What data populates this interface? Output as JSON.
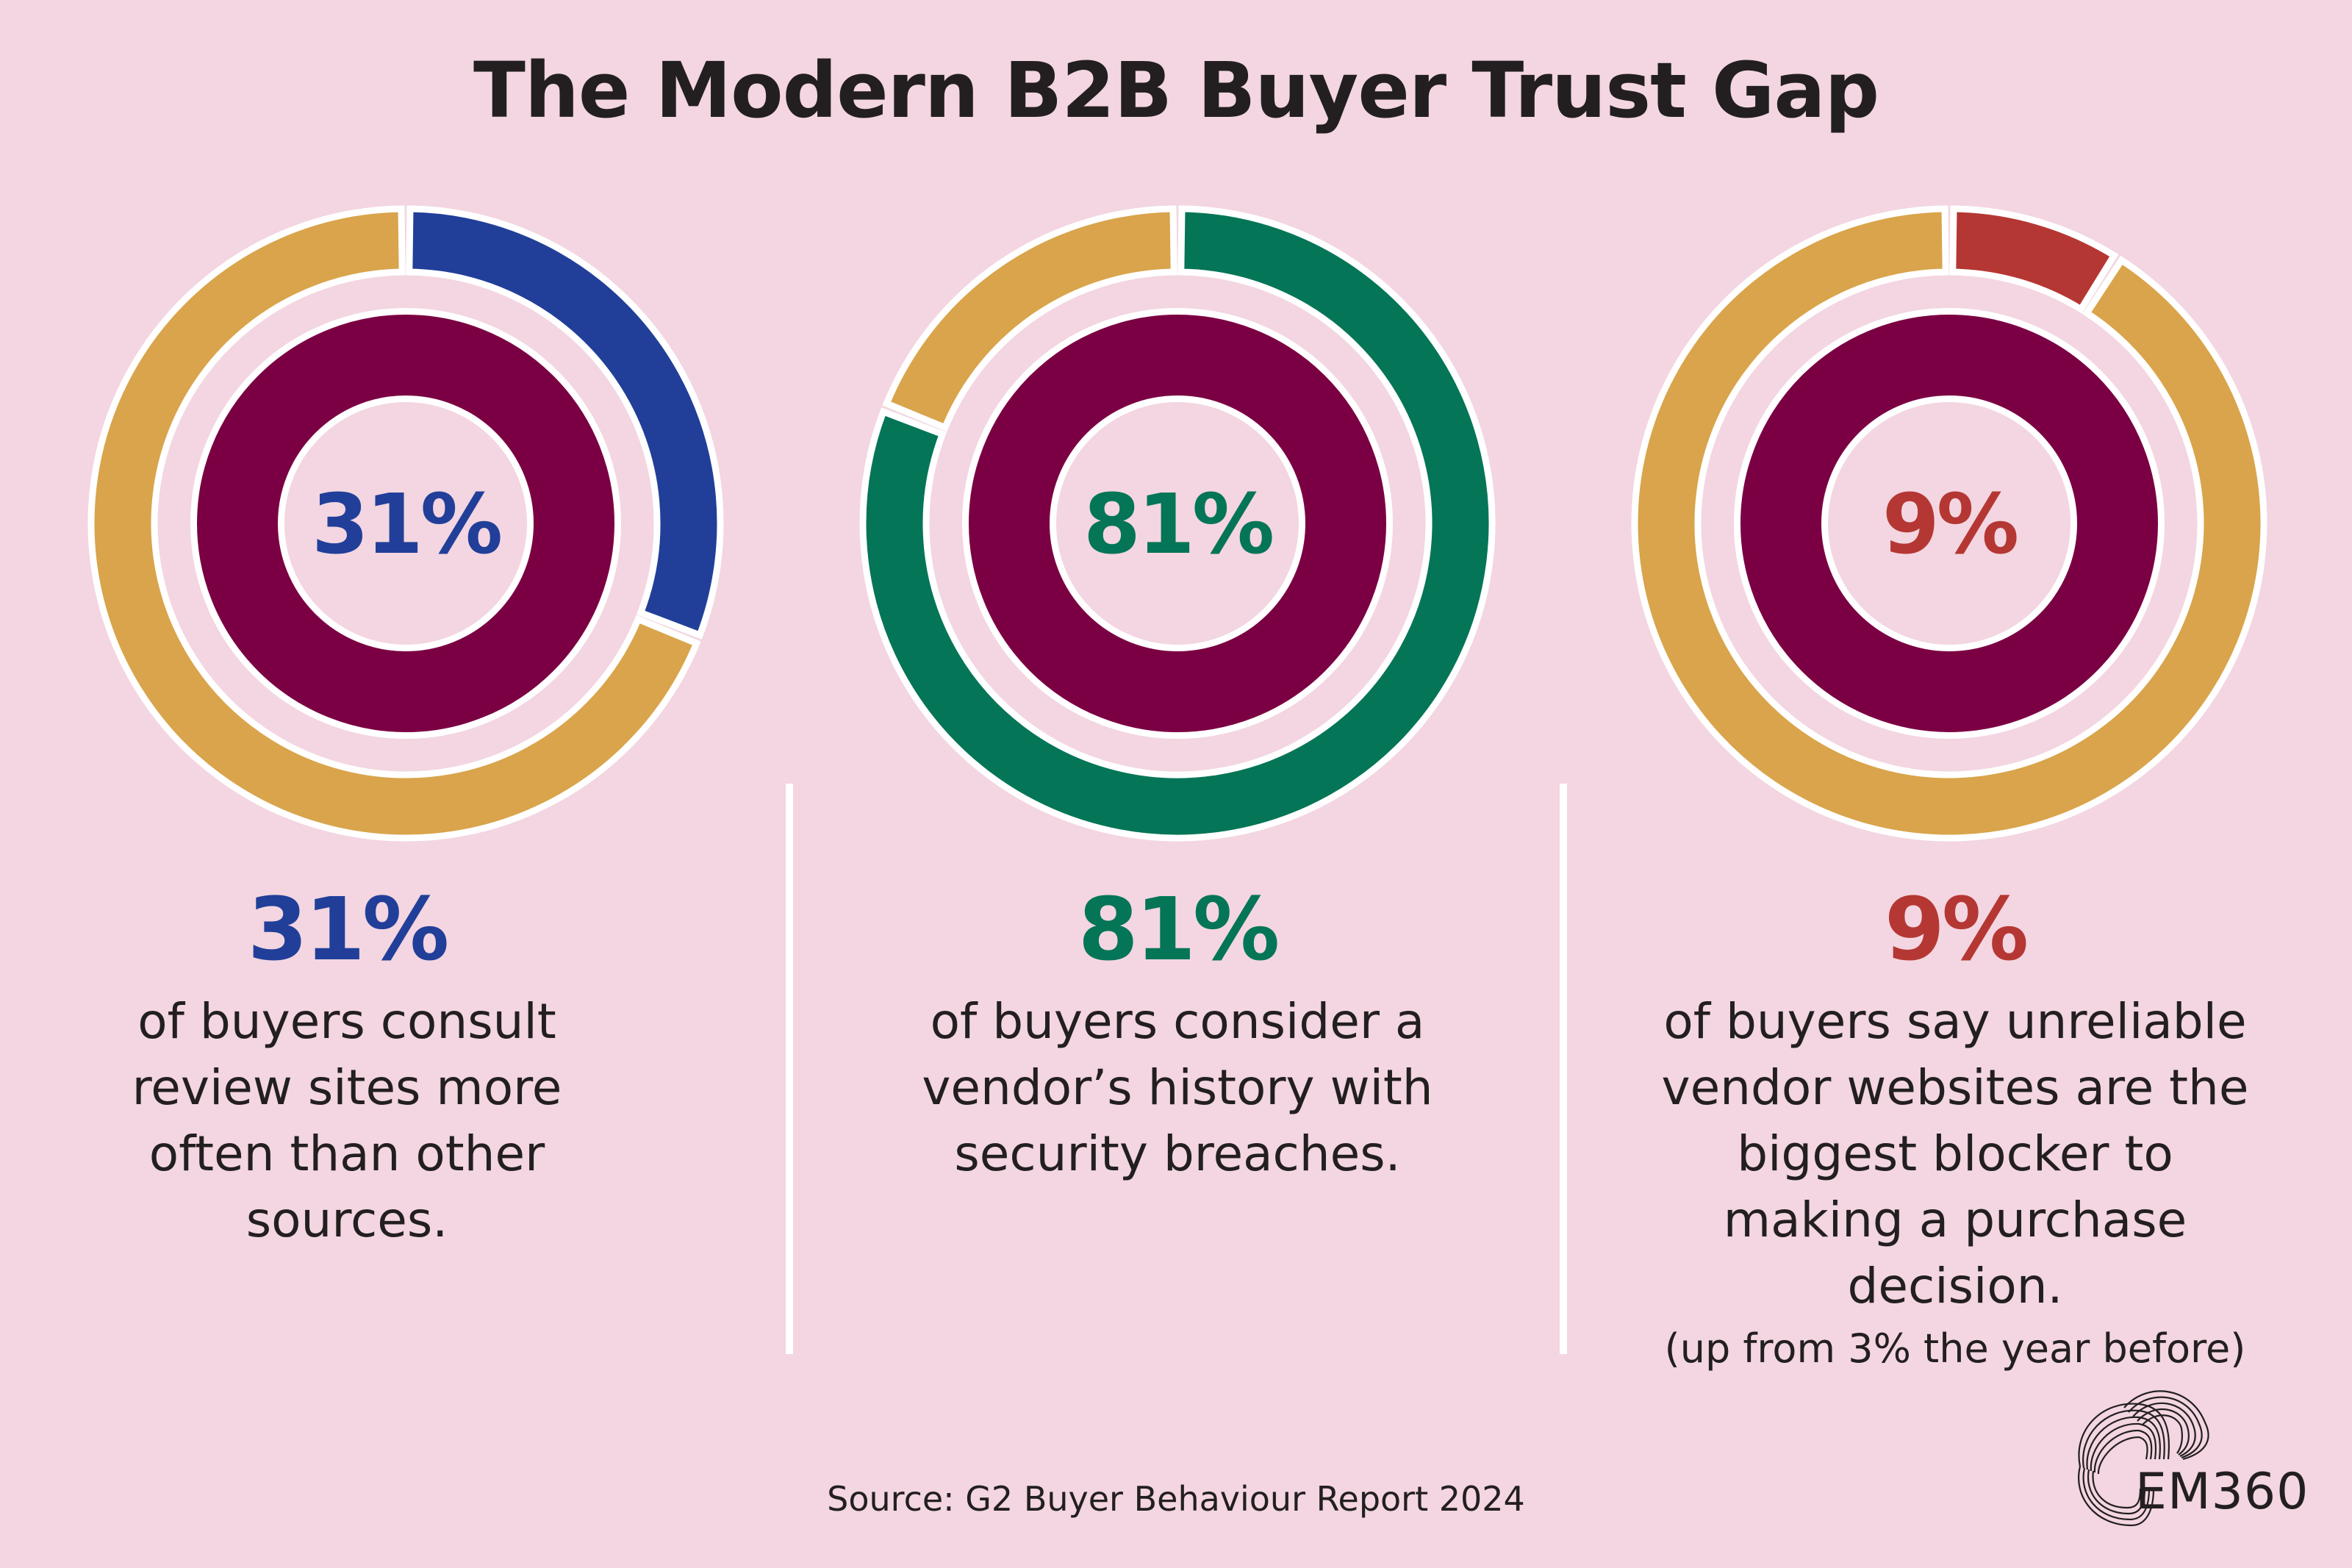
{
  "title": "The Modern B2B Buyer Trust Gap",
  "colors": {
    "background": "#f3d6e1",
    "gold": "#d9a44b",
    "inner_ring": "#7b0043",
    "outline": "#ffffff",
    "blue": "#213f99",
    "green": "#057557",
    "red": "#b53733",
    "text": "#231f20"
  },
  "stats": [
    {
      "value_label": "31%",
      "value": 31,
      "accent": "#213f99",
      "description": "of buyers consult\nreview sites more\noften than other\nsources.",
      "note": ""
    },
    {
      "value_label": "81%",
      "value": 81,
      "accent": "#057557",
      "description": "of buyers consider a\nvendor’s history with\nsecurity breaches.",
      "note": ""
    },
    {
      "value_label": "9%",
      "value": 9,
      "accent": "#b53733",
      "description": "of buyers say unreliable\nvendor websites are the\nbiggest blocker to\nmaking a purchase\ndecision.",
      "note": "(up from 3% the year before)"
    }
  ],
  "source": "Source: G2 Buyer Behaviour Report 2024",
  "logo": {
    "icon": "em360-wave-logo-icon",
    "text": "EM360"
  },
  "chart_data": [
    {
      "type": "pie",
      "title": "31%",
      "categories": [
        "Consult review sites more often",
        "Other"
      ],
      "values": [
        31,
        69
      ],
      "colors": [
        "#213f99",
        "#d9a44b"
      ],
      "subtitle": "of buyers consult review sites more often than other sources."
    },
    {
      "type": "pie",
      "title": "81%",
      "categories": [
        "Consider vendor's security breach history",
        "Other"
      ],
      "values": [
        81,
        19
      ],
      "colors": [
        "#057557",
        "#d9a44b"
      ],
      "subtitle": "of buyers consider a vendor’s history with security breaches."
    },
    {
      "type": "pie",
      "title": "9%",
      "categories": [
        "Unreliable vendor websites biggest blocker",
        "Other"
      ],
      "values": [
        9,
        91
      ],
      "colors": [
        "#b53733",
        "#d9a44b"
      ],
      "subtitle": "of buyers say unreliable vendor websites are the biggest blocker to making a purchase decision. (up from 3% the year before)"
    }
  ]
}
